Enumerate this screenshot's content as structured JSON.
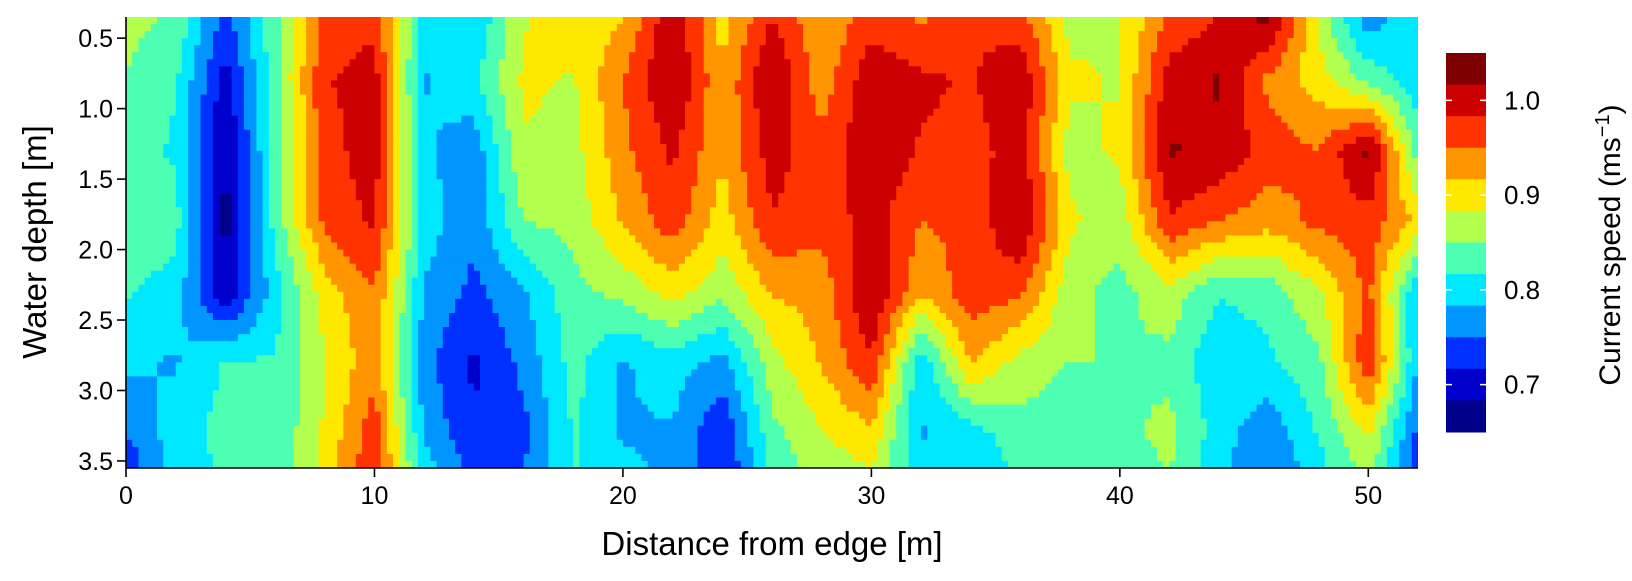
{
  "chart_data": {
    "type": "heatmap",
    "subtype": "filled-contour",
    "title": "",
    "xlabel": "Distance from edge [m]",
    "ylabel": "Water depth [m]",
    "xlim": [
      0,
      52
    ],
    "ylim": [
      3.55,
      0.35
    ],
    "y_axis_inverted": true,
    "x_ticks": [
      0,
      10,
      20,
      30,
      40,
      50
    ],
    "y_ticks": [
      0.5,
      1.0,
      1.5,
      2.0,
      2.5,
      3.0,
      3.5
    ],
    "x_tick_labels": [
      "0",
      "10",
      "20",
      "30",
      "40",
      "50"
    ],
    "y_tick_labels": [
      "0.5",
      "1.0",
      "1.5",
      "2.0",
      "2.5",
      "3.0",
      "3.5"
    ],
    "grid": false,
    "colorbar": {
      "label": "Current speed (ms",
      "label_superscript": "−1",
      "label_suffix": ")",
      "range": [
        0.65,
        1.05
      ],
      "tick_values": [
        0.7,
        0.8,
        0.9,
        1.0
      ],
      "tick_labels": [
        "0.7",
        "0.8",
        "0.9",
        "1.0"
      ],
      "level_colors": [
        "#7f0000",
        "#cc0000",
        "#ff3300",
        "#ff9500",
        "#ffe800",
        "#b2ff4d",
        "#4dffb2",
        "#00e8ff",
        "#0095ff",
        "#0030ff",
        "#0000cc",
        "#00008b"
      ]
    },
    "depths_m": [
      0.3,
      0.8,
      1.3,
      1.8,
      2.3,
      2.8,
      3.3,
      3.6
    ],
    "distances_m": [
      0,
      2,
      4,
      6,
      8,
      10,
      12,
      14,
      16,
      18,
      20,
      22,
      24,
      26,
      28,
      30,
      32,
      34,
      36,
      38,
      40,
      42,
      44,
      46,
      48,
      50,
      52
    ],
    "speed_ms": [
      [
        0.86,
        0.85,
        0.74,
        0.84,
        0.96,
        0.97,
        0.8,
        0.78,
        0.88,
        0.9,
        0.91,
        1.01,
        0.9,
        0.98,
        0.92,
        0.96,
        0.94,
        0.98,
        0.96,
        0.87,
        0.88,
        0.95,
        0.98,
        1.04,
        0.87,
        0.75,
        0.82
      ],
      [
        0.85,
        0.82,
        0.7,
        0.84,
        0.98,
        1.0,
        0.78,
        0.81,
        0.89,
        0.88,
        0.95,
        1.02,
        0.92,
        1.02,
        0.93,
        1.01,
        0.99,
        0.98,
        1.01,
        0.89,
        0.88,
        1.0,
        1.02,
        0.94,
        0.9,
        0.84,
        0.8
      ],
      [
        0.84,
        0.81,
        0.68,
        0.83,
        0.97,
        1.0,
        0.79,
        0.76,
        0.88,
        0.87,
        0.94,
        0.99,
        0.92,
        1.0,
        0.96,
        1.01,
        0.98,
        0.97,
        1.0,
        0.87,
        0.89,
        1.02,
        1.01,
        0.97,
        0.95,
        1.03,
        0.83
      ],
      [
        0.85,
        0.83,
        0.67,
        0.83,
        0.96,
        0.99,
        0.8,
        0.76,
        0.85,
        0.86,
        0.92,
        0.97,
        0.9,
        0.98,
        0.96,
        1.0,
        0.95,
        0.96,
        1.02,
        0.89,
        0.86,
        0.98,
        0.95,
        0.93,
        0.96,
        0.97,
        0.91
      ],
      [
        0.82,
        0.8,
        0.69,
        0.8,
        0.9,
        0.95,
        0.78,
        0.74,
        0.78,
        0.84,
        0.86,
        0.9,
        0.86,
        0.92,
        0.93,
        1.02,
        0.92,
        0.97,
        0.96,
        0.86,
        0.84,
        0.87,
        0.82,
        0.83,
        0.88,
        0.96,
        0.78
      ],
      [
        0.79,
        0.78,
        0.82,
        0.82,
        0.88,
        0.94,
        0.76,
        0.71,
        0.76,
        0.83,
        0.78,
        0.8,
        0.77,
        0.87,
        0.92,
        0.98,
        0.79,
        0.92,
        0.87,
        0.85,
        0.85,
        0.84,
        0.79,
        0.81,
        0.84,
        0.98,
        0.78
      ],
      [
        0.75,
        0.8,
        0.83,
        0.82,
        0.89,
        0.97,
        0.78,
        0.72,
        0.74,
        0.82,
        0.78,
        0.78,
        0.72,
        0.84,
        0.88,
        0.91,
        0.78,
        0.8,
        0.84,
        0.82,
        0.84,
        0.86,
        0.8,
        0.76,
        0.82,
        0.89,
        0.74
      ],
      [
        0.72,
        0.8,
        0.82,
        0.82,
        0.9,
        0.98,
        0.8,
        0.74,
        0.75,
        0.82,
        0.79,
        0.78,
        0.71,
        0.83,
        0.86,
        0.88,
        0.79,
        0.79,
        0.82,
        0.82,
        0.83,
        0.85,
        0.79,
        0.75,
        0.8,
        0.86,
        0.73
      ]
    ]
  }
}
